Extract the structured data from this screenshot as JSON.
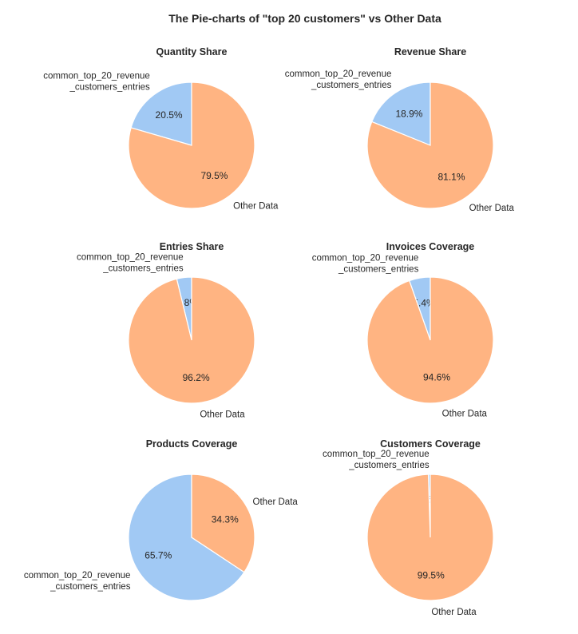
{
  "figure": {
    "title": "The Pie-charts of \"top 20 customers\" vs Other Data"
  },
  "colors": {
    "Other Data": "#ffb482",
    "common_top_20_revenue_customers_entries": "#a1c9f4",
    "wedge_edge": "#ffffff",
    "text": "#262626"
  },
  "chart_data": [
    {
      "type": "pie",
      "title": "Quantity Share",
      "slices": [
        {
          "label": "common_top_20_revenue\n_customers_entries",
          "key": "common_top_20_revenue_customers_entries",
          "value": 20.5,
          "pct_label": "20.5%"
        },
        {
          "label": "Other Data",
          "key": "Other Data",
          "value": 79.5,
          "pct_label": "79.5%"
        }
      ]
    },
    {
      "type": "pie",
      "title": "Revenue Share",
      "slices": [
        {
          "label": "common_top_20_revenue\n_customers_entries",
          "key": "common_top_20_revenue_customers_entries",
          "value": 18.9,
          "pct_label": "18.9%"
        },
        {
          "label": "Other Data",
          "key": "Other Data",
          "value": 81.1,
          "pct_label": "81.1%"
        }
      ]
    },
    {
      "type": "pie",
      "title": "Entries Share",
      "slices": [
        {
          "label": "common_top_20_revenue\n_customers_entries",
          "key": "common_top_20_revenue_customers_entries",
          "value": 3.8,
          "pct_label": "3.8%"
        },
        {
          "label": "Other Data",
          "key": "Other Data",
          "value": 96.2,
          "pct_label": "96.2%"
        }
      ]
    },
    {
      "type": "pie",
      "title": "Invoices Coverage",
      "slices": [
        {
          "label": "common_top_20_revenue\n_customers_entries",
          "key": "common_top_20_revenue_customers_entries",
          "value": 5.4,
          "pct_label": "5.4%"
        },
        {
          "label": "Other Data",
          "key": "Other Data",
          "value": 94.6,
          "pct_label": "94.6%"
        }
      ]
    },
    {
      "type": "pie",
      "title": "Products Coverage",
      "slices": [
        {
          "label": "common_top_20_revenue\n_customers_entries",
          "key": "common_top_20_revenue_customers_entries",
          "value": 65.7,
          "pct_label": "65.7%"
        },
        {
          "label": "Other Data",
          "key": "Other Data",
          "value": 34.3,
          "pct_label": "34.3%"
        }
      ]
    },
    {
      "type": "pie",
      "title": "Customers Coverage",
      "slices": [
        {
          "label": "common_top_20_revenue\n_customers_entries",
          "key": "common_top_20_revenue_customers_entries",
          "value": 0.5,
          "pct_label": "0.5%"
        },
        {
          "label": "Other Data",
          "key": "Other Data",
          "value": 99.5,
          "pct_label": "99.5%"
        }
      ]
    }
  ]
}
